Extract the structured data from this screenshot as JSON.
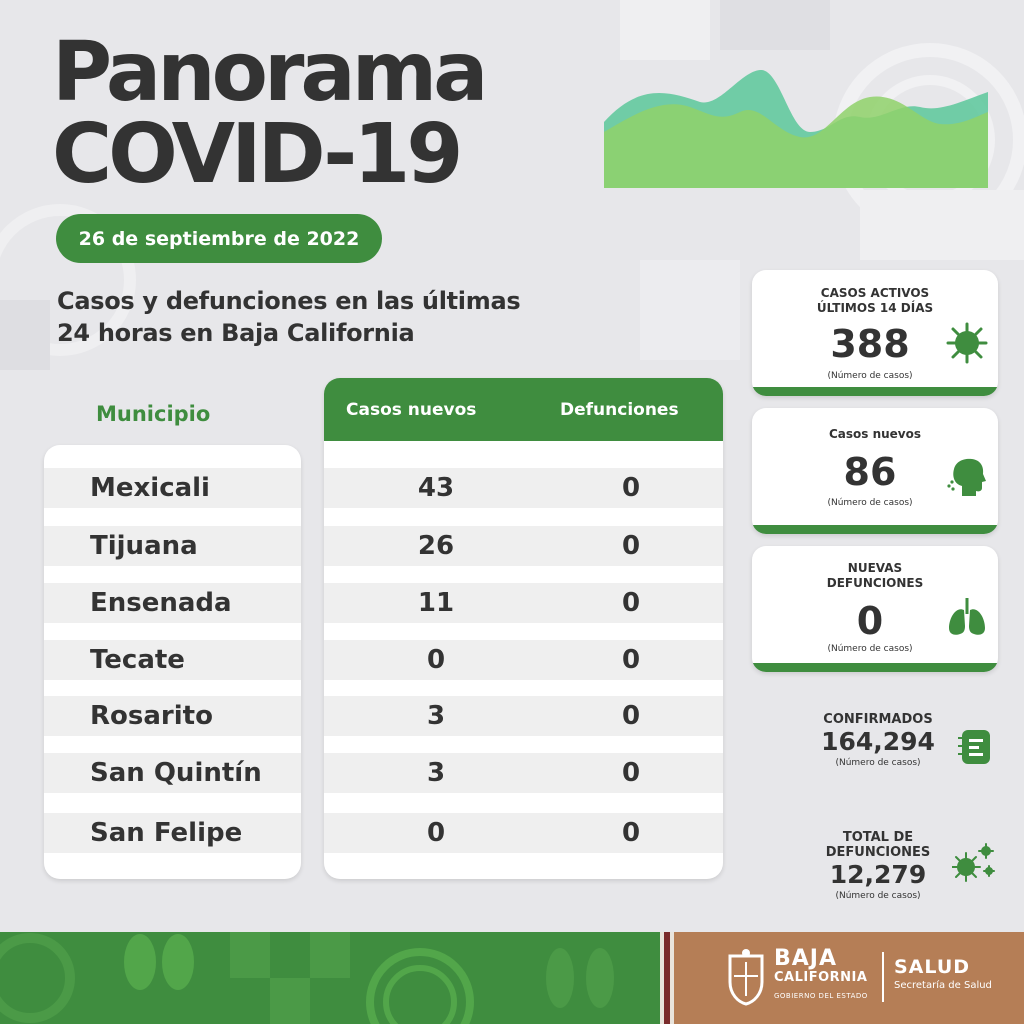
{
  "header": {
    "title_line1": "Panorama",
    "title_line2": "COVID-19",
    "date": "26 de septiembre de 2022",
    "subtitle_line1": "Casos y defunciones en las últimas",
    "subtitle_line2": "24 horas en Baja California"
  },
  "table": {
    "municipio_header": "Municipio",
    "cases_header": "Casos nuevos",
    "deaths_header": "Defunciones",
    "rows": [
      {
        "municipio": "Mexicali",
        "casos": "43",
        "defunciones": "0"
      },
      {
        "municipio": "Tijuana",
        "casos": "26",
        "defunciones": "0"
      },
      {
        "municipio": "Ensenada",
        "casos": "11",
        "defunciones": "0"
      },
      {
        "municipio": "Tecate",
        "casos": "0",
        "defunciones": "0"
      },
      {
        "municipio": "Rosarito",
        "casos": "3",
        "defunciones": "0"
      },
      {
        "municipio": "San Quintín",
        "casos": "3",
        "defunciones": "0"
      },
      {
        "municipio": "San Felipe",
        "casos": "0",
        "defunciones": "0"
      }
    ]
  },
  "stats": {
    "activos": {
      "label": "CASOS ACTIVOS\nÚLTIMOS 14 DÍAS",
      "value": "388",
      "sub": "(Número de casos)",
      "icon": "virus-icon"
    },
    "nuevos": {
      "label": "Casos nuevos",
      "value": "86",
      "sub": "(Número de casos)",
      "icon": "coughing-head-icon"
    },
    "defunciones": {
      "label": "NUEVAS\nDEFUNCIONES",
      "value": "0",
      "sub": "(Número de casos)",
      "icon": "lungs-icon"
    },
    "confirmados": {
      "label": "CONFIRMADOS",
      "value": "164,294",
      "sub": "(Número de casos)",
      "icon": "list-icon"
    },
    "total_defunciones": {
      "label": "TOTAL DE\nDEFUNCIONES",
      "value": "12,279",
      "sub": "(Número de casos)",
      "icon": "virus-cluster-icon"
    }
  },
  "footer": {
    "brand_line1": "BAJA",
    "brand_line2": "CALIFORNIA",
    "brand_line3": "GOBIERNO DEL ESTADO",
    "dept": "SALUD",
    "dept_sub": "Secretaría de Salud"
  },
  "colors": {
    "primary_green": "#3f8d3f",
    "text_dark": "#333333",
    "footer_brown": "#b57e56",
    "background": "#e7e7ea"
  }
}
